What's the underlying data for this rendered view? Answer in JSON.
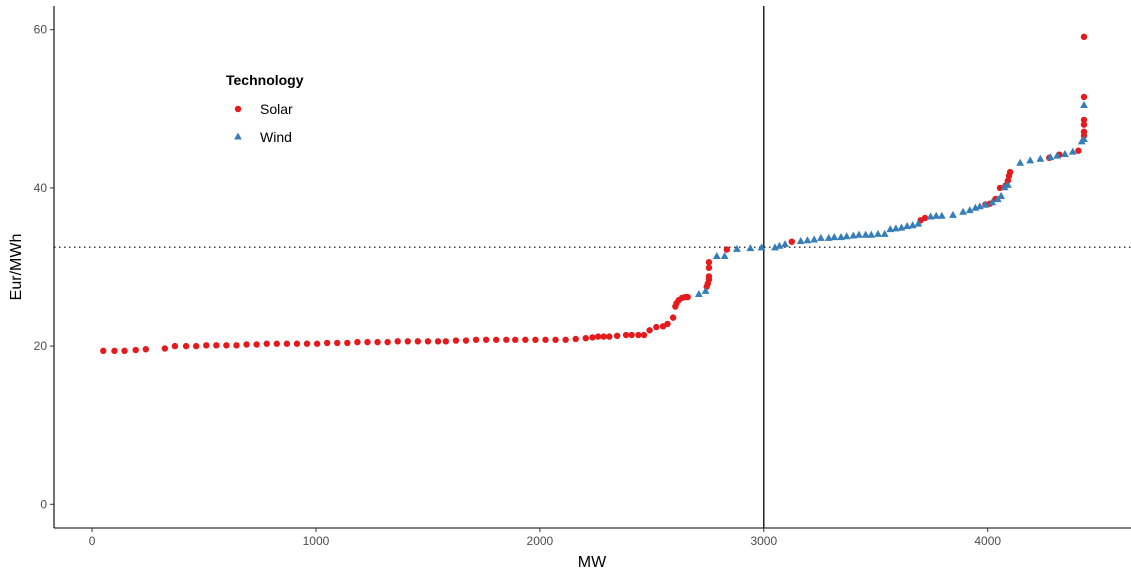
{
  "chart_data": {
    "type": "scatter",
    "xlabel": "MW",
    "ylabel": "Eur/MWh",
    "xlim": [
      -170,
      4640
    ],
    "ylim": [
      -3,
      63
    ],
    "x_ticks": [
      0,
      1000,
      2000,
      3000,
      4000
    ],
    "y_ticks": [
      0,
      20,
      40,
      60
    ],
    "grid": false,
    "vline": 3000,
    "hline": 32.5,
    "legend": {
      "title": "Technology",
      "placement": "top-left inside",
      "entries": [
        "Solar",
        "Wind"
      ]
    },
    "series": [
      {
        "name": "Solar",
        "marker": "circle",
        "color": "#e41a1c",
        "points": [
          [
            50,
            19.4
          ],
          [
            100,
            19.4
          ],
          [
            145,
            19.4
          ],
          [
            195,
            19.5
          ],
          [
            240,
            19.6
          ],
          [
            325,
            19.7
          ],
          [
            370,
            20.0
          ],
          [
            420,
            20.0
          ],
          [
            465,
            20.0
          ],
          [
            510,
            20.1
          ],
          [
            555,
            20.1
          ],
          [
            600,
            20.1
          ],
          [
            645,
            20.1
          ],
          [
            690,
            20.2
          ],
          [
            735,
            20.2
          ],
          [
            780,
            20.3
          ],
          [
            825,
            20.3
          ],
          [
            870,
            20.3
          ],
          [
            915,
            20.3
          ],
          [
            960,
            20.3
          ],
          [
            1005,
            20.3
          ],
          [
            1050,
            20.4
          ],
          [
            1095,
            20.4
          ],
          [
            1140,
            20.4
          ],
          [
            1185,
            20.5
          ],
          [
            1230,
            20.5
          ],
          [
            1275,
            20.5
          ],
          [
            1320,
            20.5
          ],
          [
            1365,
            20.6
          ],
          [
            1410,
            20.6
          ],
          [
            1455,
            20.6
          ],
          [
            1500,
            20.6
          ],
          [
            1545,
            20.6
          ],
          [
            1580,
            20.6
          ],
          [
            1625,
            20.7
          ],
          [
            1670,
            20.7
          ],
          [
            1715,
            20.8
          ],
          [
            1760,
            20.8
          ],
          [
            1805,
            20.8
          ],
          [
            1850,
            20.8
          ],
          [
            1890,
            20.8
          ],
          [
            1935,
            20.8
          ],
          [
            1980,
            20.8
          ],
          [
            2025,
            20.8
          ],
          [
            2070,
            20.8
          ],
          [
            2115,
            20.8
          ],
          [
            2160,
            20.9
          ],
          [
            2205,
            21.0
          ],
          [
            2235,
            21.1
          ],
          [
            2260,
            21.2
          ],
          [
            2285,
            21.2
          ],
          [
            2310,
            21.2
          ],
          [
            2345,
            21.3
          ],
          [
            2385,
            21.4
          ],
          [
            2410,
            21.4
          ],
          [
            2440,
            21.4
          ],
          [
            2465,
            21.4
          ],
          [
            2490,
            22.0
          ],
          [
            2520,
            22.4
          ],
          [
            2550,
            22.5
          ],
          [
            2570,
            22.8
          ],
          [
            2595,
            23.6
          ],
          [
            2605,
            25.0
          ],
          [
            2610,
            25.4
          ],
          [
            2620,
            25.8
          ],
          [
            2635,
            26.1
          ],
          [
            2650,
            26.2
          ],
          [
            2660,
            26.2
          ],
          [
            2745,
            27.5
          ],
          [
            2750,
            27.9
          ],
          [
            2755,
            28.4
          ],
          [
            2755,
            28.8
          ],
          [
            2755,
            29.9
          ],
          [
            2755,
            30.6
          ],
          [
            2835,
            32.2
          ],
          [
            3125,
            33.2
          ],
          [
            3700,
            35.9
          ],
          [
            3720,
            36.2
          ],
          [
            3990,
            37.9
          ],
          [
            4010,
            38.0
          ],
          [
            4035,
            38.6
          ],
          [
            4055,
            40.0
          ],
          [
            4080,
            40.3
          ],
          [
            4090,
            40.9
          ],
          [
            4095,
            41.5
          ],
          [
            4100,
            42.0
          ],
          [
            4275,
            43.8
          ],
          [
            4320,
            44.2
          ],
          [
            4405,
            44.7
          ],
          [
            4430,
            46.6
          ],
          [
            4430,
            47.1
          ],
          [
            4430,
            48.0
          ],
          [
            4430,
            48.6
          ],
          [
            4430,
            51.5
          ],
          [
            4430,
            59.1
          ]
        ]
      },
      {
        "name": "Wind",
        "marker": "triangle",
        "color": "#377eb8",
        "points": [
          [
            2710,
            26.6
          ],
          [
            2740,
            27.0
          ],
          [
            2790,
            31.4
          ],
          [
            2825,
            31.4
          ],
          [
            2880,
            32.3
          ],
          [
            2940,
            32.4
          ],
          [
            2990,
            32.5
          ],
          [
            3050,
            32.5
          ],
          [
            3070,
            32.7
          ],
          [
            3095,
            32.9
          ],
          [
            3165,
            33.3
          ],
          [
            3195,
            33.4
          ],
          [
            3225,
            33.5
          ],
          [
            3255,
            33.7
          ],
          [
            3290,
            33.7
          ],
          [
            3315,
            33.8
          ],
          [
            3345,
            33.8
          ],
          [
            3370,
            33.9
          ],
          [
            3400,
            34.0
          ],
          [
            3425,
            34.1
          ],
          [
            3455,
            34.1
          ],
          [
            3480,
            34.1
          ],
          [
            3510,
            34.2
          ],
          [
            3540,
            34.2
          ],
          [
            3565,
            34.8
          ],
          [
            3590,
            34.9
          ],
          [
            3615,
            35.0
          ],
          [
            3640,
            35.2
          ],
          [
            3665,
            35.3
          ],
          [
            3690,
            35.5
          ],
          [
            3745,
            36.4
          ],
          [
            3770,
            36.5
          ],
          [
            3795,
            36.5
          ],
          [
            3845,
            36.6
          ],
          [
            3890,
            37.0
          ],
          [
            3920,
            37.2
          ],
          [
            3945,
            37.5
          ],
          [
            3965,
            37.7
          ],
          [
            3990,
            37.9
          ],
          [
            4020,
            38.2
          ],
          [
            4045,
            38.6
          ],
          [
            4060,
            39.0
          ],
          [
            4075,
            40.1
          ],
          [
            4090,
            40.4
          ],
          [
            4145,
            43.2
          ],
          [
            4190,
            43.5
          ],
          [
            4235,
            43.7
          ],
          [
            4280,
            43.9
          ],
          [
            4310,
            44.1
          ],
          [
            4345,
            44.3
          ],
          [
            4380,
            44.6
          ],
          [
            4420,
            45.9
          ],
          [
            4430,
            46.2
          ],
          [
            4430,
            50.5
          ]
        ]
      }
    ]
  }
}
